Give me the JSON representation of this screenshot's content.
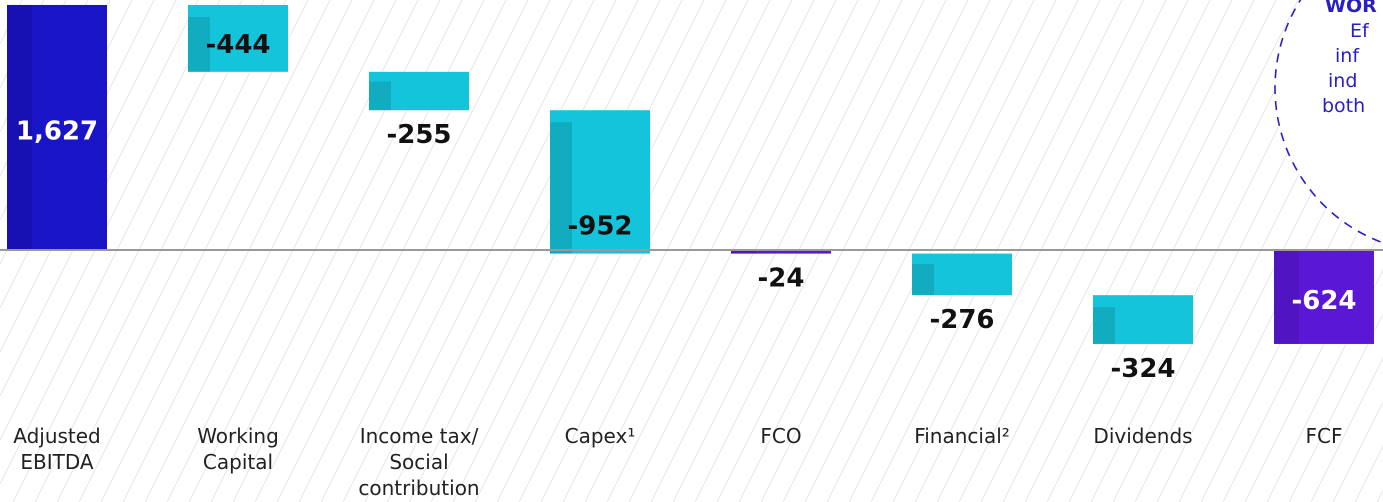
{
  "chart_data": {
    "type": "waterfall",
    "categories": [
      [
        "Adjusted",
        "EBITDA"
      ],
      [
        "Working",
        "Capital"
      ],
      [
        "Income tax/",
        "Social",
        "contribution"
      ],
      [
        "Capex¹"
      ],
      [
        "FCO"
      ],
      [
        "Financial²"
      ],
      [
        "Dividends"
      ],
      [
        "FCF"
      ]
    ],
    "values": [
      1627,
      -444,
      -255,
      -952,
      -24,
      -276,
      -324,
      -624
    ],
    "value_labels": [
      "1,627",
      "-444",
      "-255",
      "-952",
      "-24",
      "-276",
      "-324",
      "-624"
    ],
    "is_total": [
      true,
      false,
      false,
      false,
      true,
      false,
      false,
      true
    ],
    "colors": [
      "#1a14c8",
      "#14c4da",
      "#14c4da",
      "#14c4da",
      "#5a18d6",
      "#14c4da",
      "#14c4da",
      "#5a18d6"
    ],
    "ylim": [
      -700,
      1660
    ],
    "annotation": [
      "WOR",
      "Ef",
      "inf",
      "ind",
      "both"
    ]
  }
}
